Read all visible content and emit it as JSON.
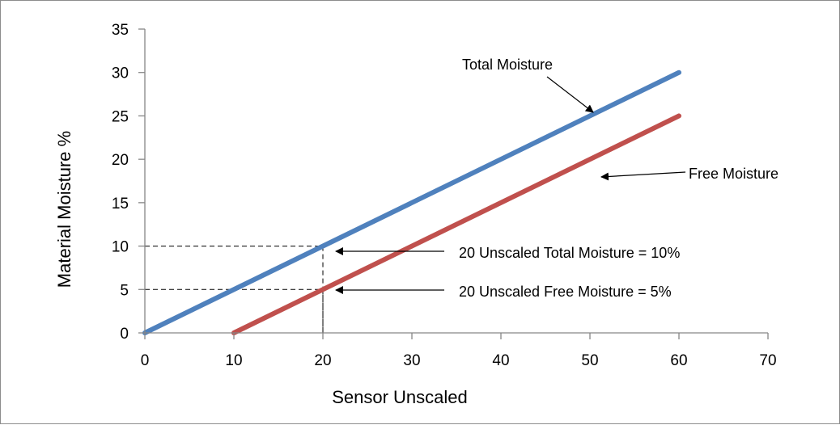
{
  "chart_data": {
    "type": "line",
    "xlabel": "Sensor Unscaled",
    "ylabel": "Material Moisture %",
    "xlim": [
      0,
      70
    ],
    "ylim": [
      0,
      35
    ],
    "xticks": [
      0,
      10,
      20,
      30,
      40,
      50,
      60,
      70
    ],
    "yticks": [
      0,
      5,
      10,
      15,
      20,
      25,
      30,
      35
    ],
    "grid": false,
    "legend": "none",
    "series": [
      {
        "name": "Total Moisture",
        "color": "#4f81bd",
        "x": [
          0,
          60
        ],
        "y": [
          0,
          30
        ]
      },
      {
        "name": "Free Moisture",
        "color": "#c0504d",
        "x": [
          10,
          60
        ],
        "y": [
          0,
          25
        ]
      }
    ],
    "reference_lines": [
      {
        "x": 20,
        "y": 10,
        "style": "dashed"
      },
      {
        "x": 20,
        "y": 5,
        "style": "dashed"
      }
    ],
    "annotations": [
      {
        "text": "Total Moisture",
        "target": {
          "x": 50,
          "y": 25
        }
      },
      {
        "text": "Free Moisture",
        "target": {
          "x": 48,
          "y": 19
        }
      },
      {
        "text": "20 Unscaled Total Moisture = 10%",
        "target": {
          "x": 21,
          "y": 10
        }
      },
      {
        "text": "20 Unscaled Free Moisture = 5%",
        "target": {
          "x": 21,
          "y": 5
        }
      }
    ]
  }
}
